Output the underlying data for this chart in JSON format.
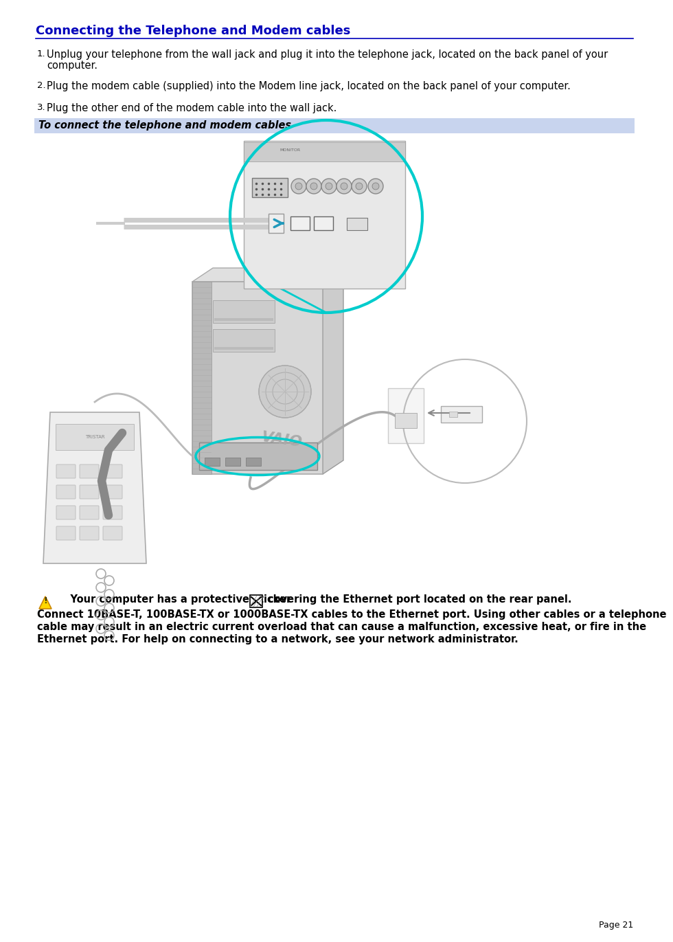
{
  "title": "Connecting the Telephone and Modem cables",
  "title_color": "#0000BB",
  "background_color": "#FFFFFF",
  "page_number": "Page 21",
  "item1_num": "1.",
  "item1_text1": "Unplug your telephone from the wall jack and plug it into the telephone jack, located on the back panel of your",
  "item1_text2": "computer.",
  "item2_num": "2.",
  "item2_text": "Plug the modem cable (supplied) into the Modem line jack, located on the back panel of your computer.",
  "item3_num": "3.",
  "item3_text": "Plug the other end of the modem cable into the wall jack.",
  "caption_text": "To connect the telephone and modem cables",
  "caption_bg": "#C8D4EE",
  "warn_line1a": "    Your computer has a protective sticker",
  "warn_line1b": "covering the Ethernet port located on the rear panel.",
  "warn_line2": "Connect 10BASE-T, 100BASE-TX or 1000BASE-TX cables to the Ethernet port. Using other cables or a telephone",
  "warn_line3": "cable may result in an electric current overload that can cause a malfunction, excessive heat, or fire in the",
  "warn_line4": "Ethernet port. For help on connecting to a network, see your network administrator.",
  "body_font_size": 10.5,
  "title_font_size": 13,
  "warn_font_size": 10.5,
  "ML": 42,
  "MR": 912,
  "item_indent": 58
}
